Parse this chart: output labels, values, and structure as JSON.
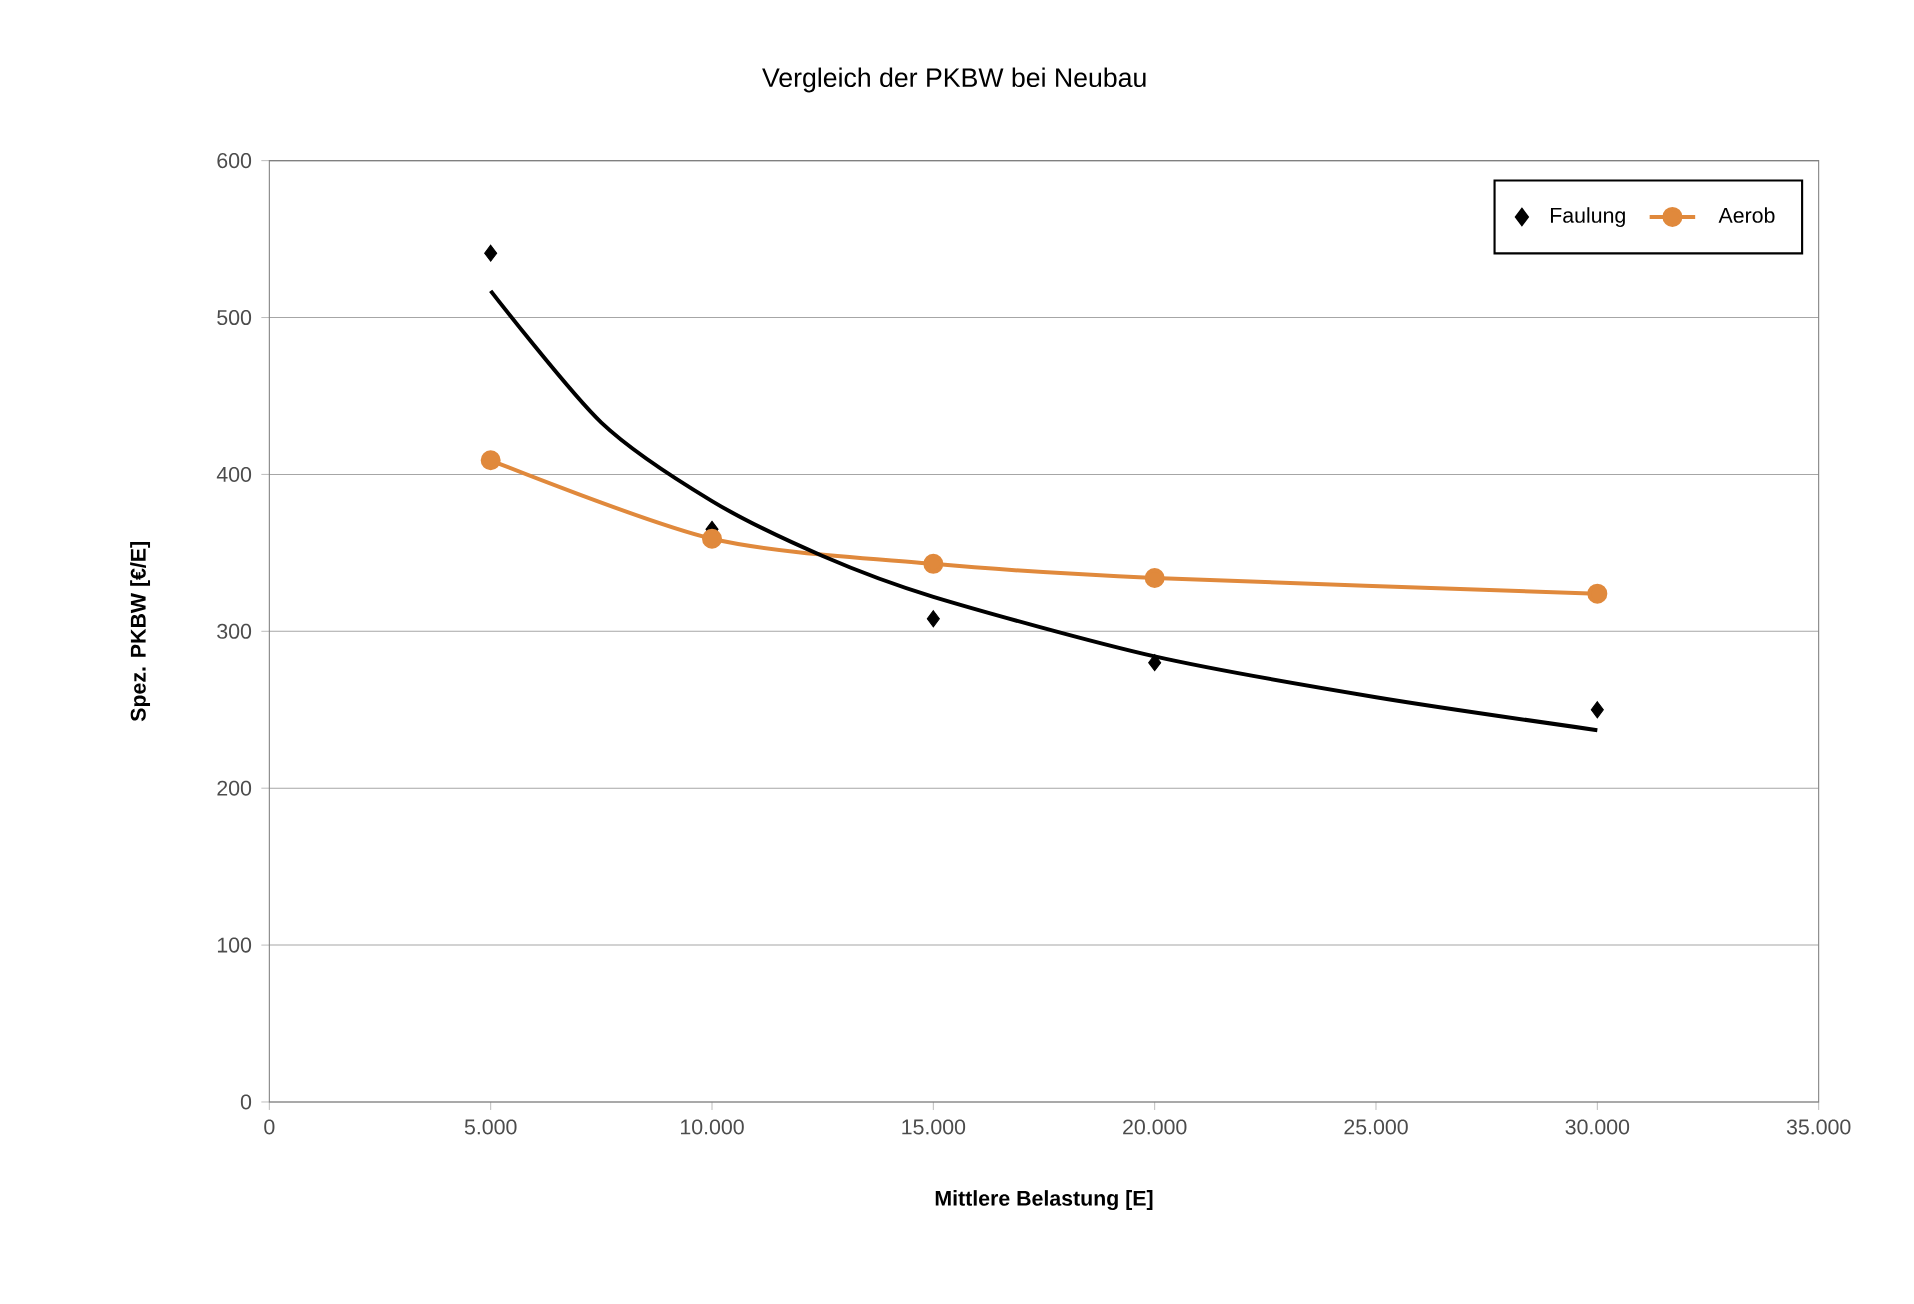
{
  "chart_data": {
    "type": "scatter",
    "title": "Vergleich der PKBW bei Neubau",
    "xlabel": "Mittlere Belastung [E]",
    "ylabel": "Spez. PKBW [€/E]",
    "x": [
      5000,
      10000,
      15000,
      20000,
      30000
    ],
    "series": [
      {
        "name": "Faulung",
        "color": "#000000",
        "marker": "diamond",
        "values": [
          541,
          365,
          308,
          280,
          250
        ]
      },
      {
        "name": "Aerob",
        "color": "#e0893c",
        "type": "line",
        "marker": "circle",
        "values": [
          409,
          359,
          343,
          334,
          324
        ]
      },
      {
        "color": "#000000",
        "type": "line",
        "marker": "none",
        "x": [
          5000,
          7500,
          10000,
          12500,
          15000,
          20000,
          25000,
          30000
        ],
        "values": [
          517,
          433,
          383,
          348,
          322,
          284,
          258,
          237
        ]
      }
    ],
    "xlim": [
      0,
      35000
    ],
    "ylim": [
      0,
      600
    ],
    "xticks": [
      0,
      {
        "value": 5000,
        "label": "5.000"
      },
      {
        "value": 10000,
        "label": "10.000"
      },
      {
        "value": 15000,
        "label": "15.000"
      },
      {
        "value": 20000,
        "label": "20.000"
      },
      {
        "value": 25000,
        "label": "25.000"
      },
      {
        "value": 30000,
        "label": "30.000"
      },
      {
        "value": 35000,
        "label": "35.000"
      }
    ],
    "yticks": [
      0,
      100,
      200,
      300,
      400,
      500,
      600
    ],
    "grid": "y",
    "legend": "top right"
  }
}
